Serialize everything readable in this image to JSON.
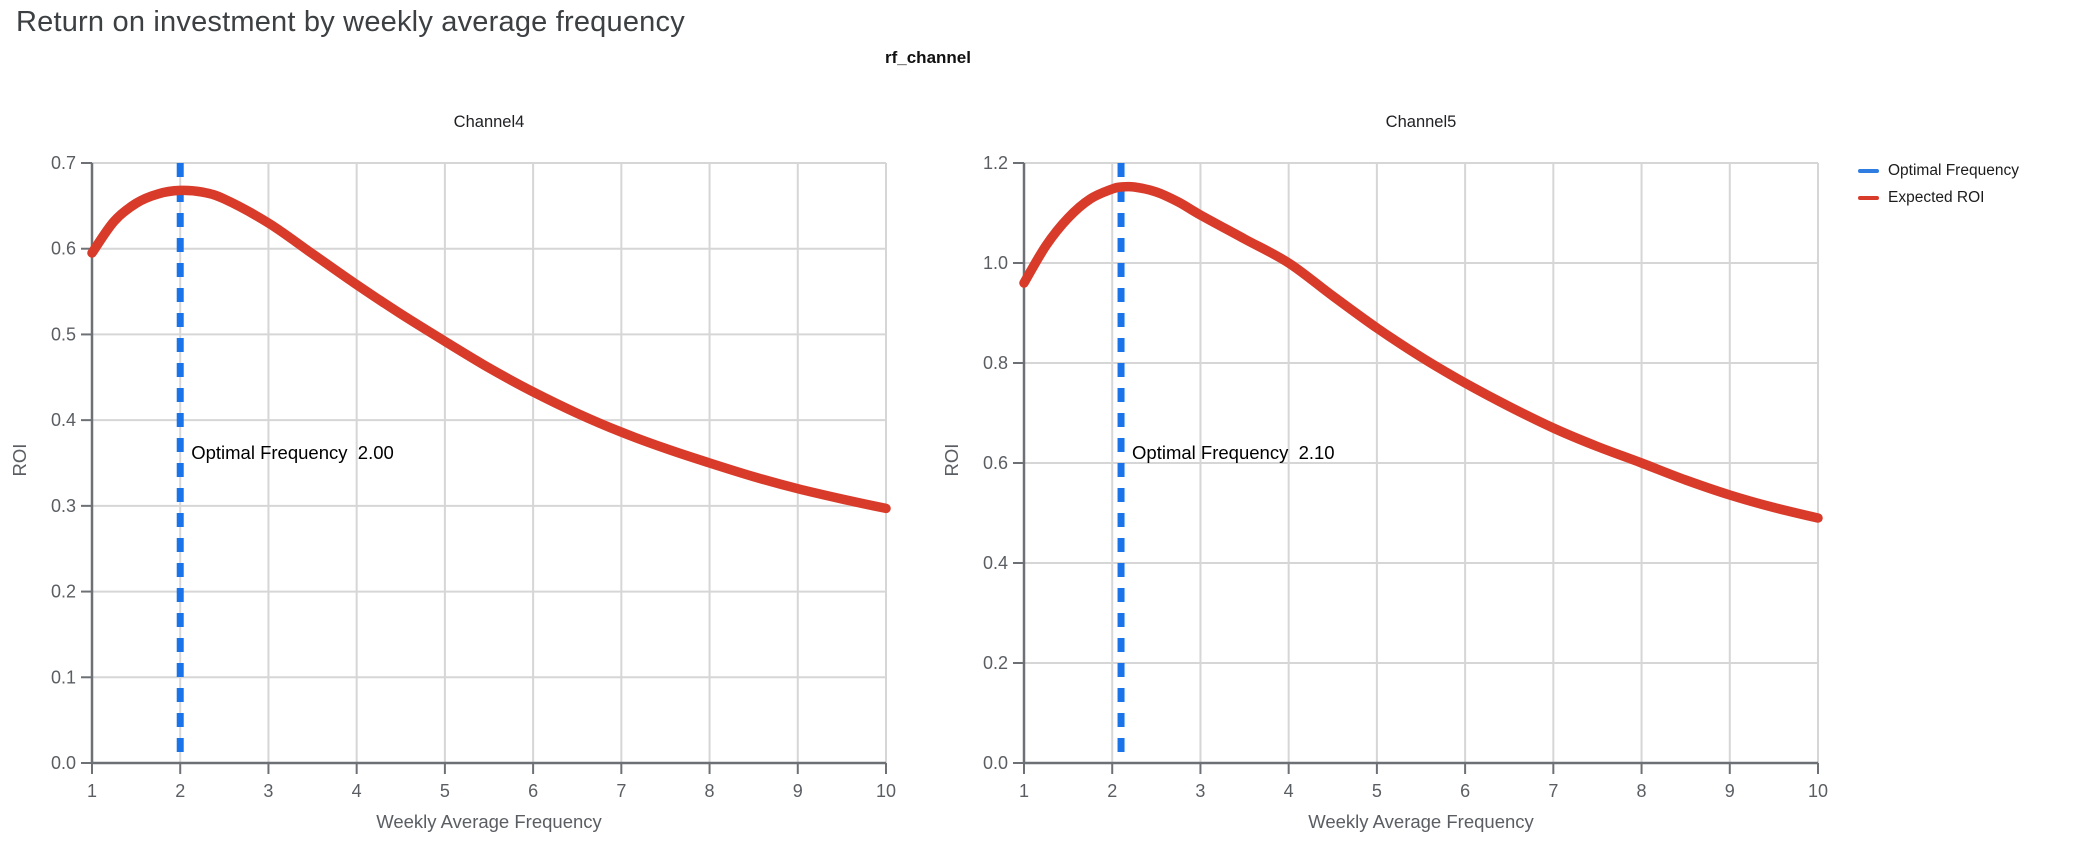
{
  "page_title": "Return on investment by weekly average frequency",
  "group_title": "rf_channel",
  "legend": {
    "items": [
      {
        "label": "Optimal Frequency",
        "color": "#2f7de1"
      },
      {
        "label": "Expected ROI",
        "color": "#d93b2b"
      }
    ]
  },
  "colors": {
    "expected_roi_line": "#d93b2b",
    "optimal_frequency_line": "#1a73e8",
    "gridline": "#d6d6d6",
    "axis_line": "#6d7175",
    "tick_label": "#5a5e63",
    "axis_title": "#5a5e63",
    "facet_title": "#202124",
    "annotation_text": "#000000"
  },
  "chart_data": [
    {
      "type": "line",
      "title": "Channel4",
      "xlabel": "Weekly Average Frequency",
      "ylabel": "ROI",
      "xlim": [
        1,
        10
      ],
      "ylim": [
        0,
        0.7
      ],
      "x_ticks": [
        "1",
        "2",
        "3",
        "4",
        "5",
        "6",
        "7",
        "8",
        "9",
        "10"
      ],
      "y_ticks": [
        "0.0",
        "0.1",
        "0.2",
        "0.3",
        "0.4",
        "0.5",
        "0.6",
        "0.7"
      ],
      "grid": true,
      "optimal_frequency": 2.0,
      "annotation": {
        "label": "Optimal Frequency",
        "value": "2.00"
      },
      "series": [
        {
          "name": "Expected ROI",
          "x": [
            1,
            1.25,
            1.5,
            1.75,
            2,
            2.25,
            2.5,
            3,
            3.5,
            4,
            4.5,
            5,
            5.5,
            6,
            6.5,
            7,
            7.5,
            8,
            8.5,
            9,
            9.5,
            10
          ],
          "y": [
            0.595,
            0.632,
            0.653,
            0.664,
            0.668,
            0.666,
            0.658,
            0.63,
            0.594,
            0.558,
            0.524,
            0.492,
            0.461,
            0.433,
            0.408,
            0.386,
            0.367,
            0.35,
            0.334,
            0.32,
            0.308,
            0.297
          ]
        }
      ]
    },
    {
      "type": "line",
      "title": "Channel5",
      "xlabel": "Weekly Average Frequency",
      "ylabel": "ROI",
      "xlim": [
        1,
        10
      ],
      "ylim": [
        0,
        1.2
      ],
      "x_ticks": [
        "1",
        "2",
        "3",
        "4",
        "5",
        "6",
        "7",
        "8",
        "9",
        "10"
      ],
      "y_ticks": [
        "0.0",
        "0.2",
        "0.4",
        "0.6",
        "0.8",
        "1.0",
        "1.2"
      ],
      "grid": true,
      "optimal_frequency": 2.1,
      "annotation": {
        "label": "Optimal Frequency",
        "value": "2.10"
      },
      "series": [
        {
          "name": "Expected ROI",
          "x": [
            1,
            1.25,
            1.5,
            1.75,
            2,
            2.1,
            2.25,
            2.5,
            2.75,
            3,
            3.5,
            4,
            4.5,
            5,
            5.5,
            6,
            6.5,
            7,
            7.5,
            8,
            8.5,
            9,
            9.5,
            10
          ],
          "y": [
            0.96,
            1.035,
            1.09,
            1.128,
            1.148,
            1.152,
            1.152,
            1.142,
            1.122,
            1.096,
            1.048,
            1.0,
            0.934,
            0.87,
            0.812,
            0.76,
            0.713,
            0.67,
            0.633,
            0.6,
            0.566,
            0.536,
            0.511,
            0.49
          ]
        }
      ]
    }
  ]
}
